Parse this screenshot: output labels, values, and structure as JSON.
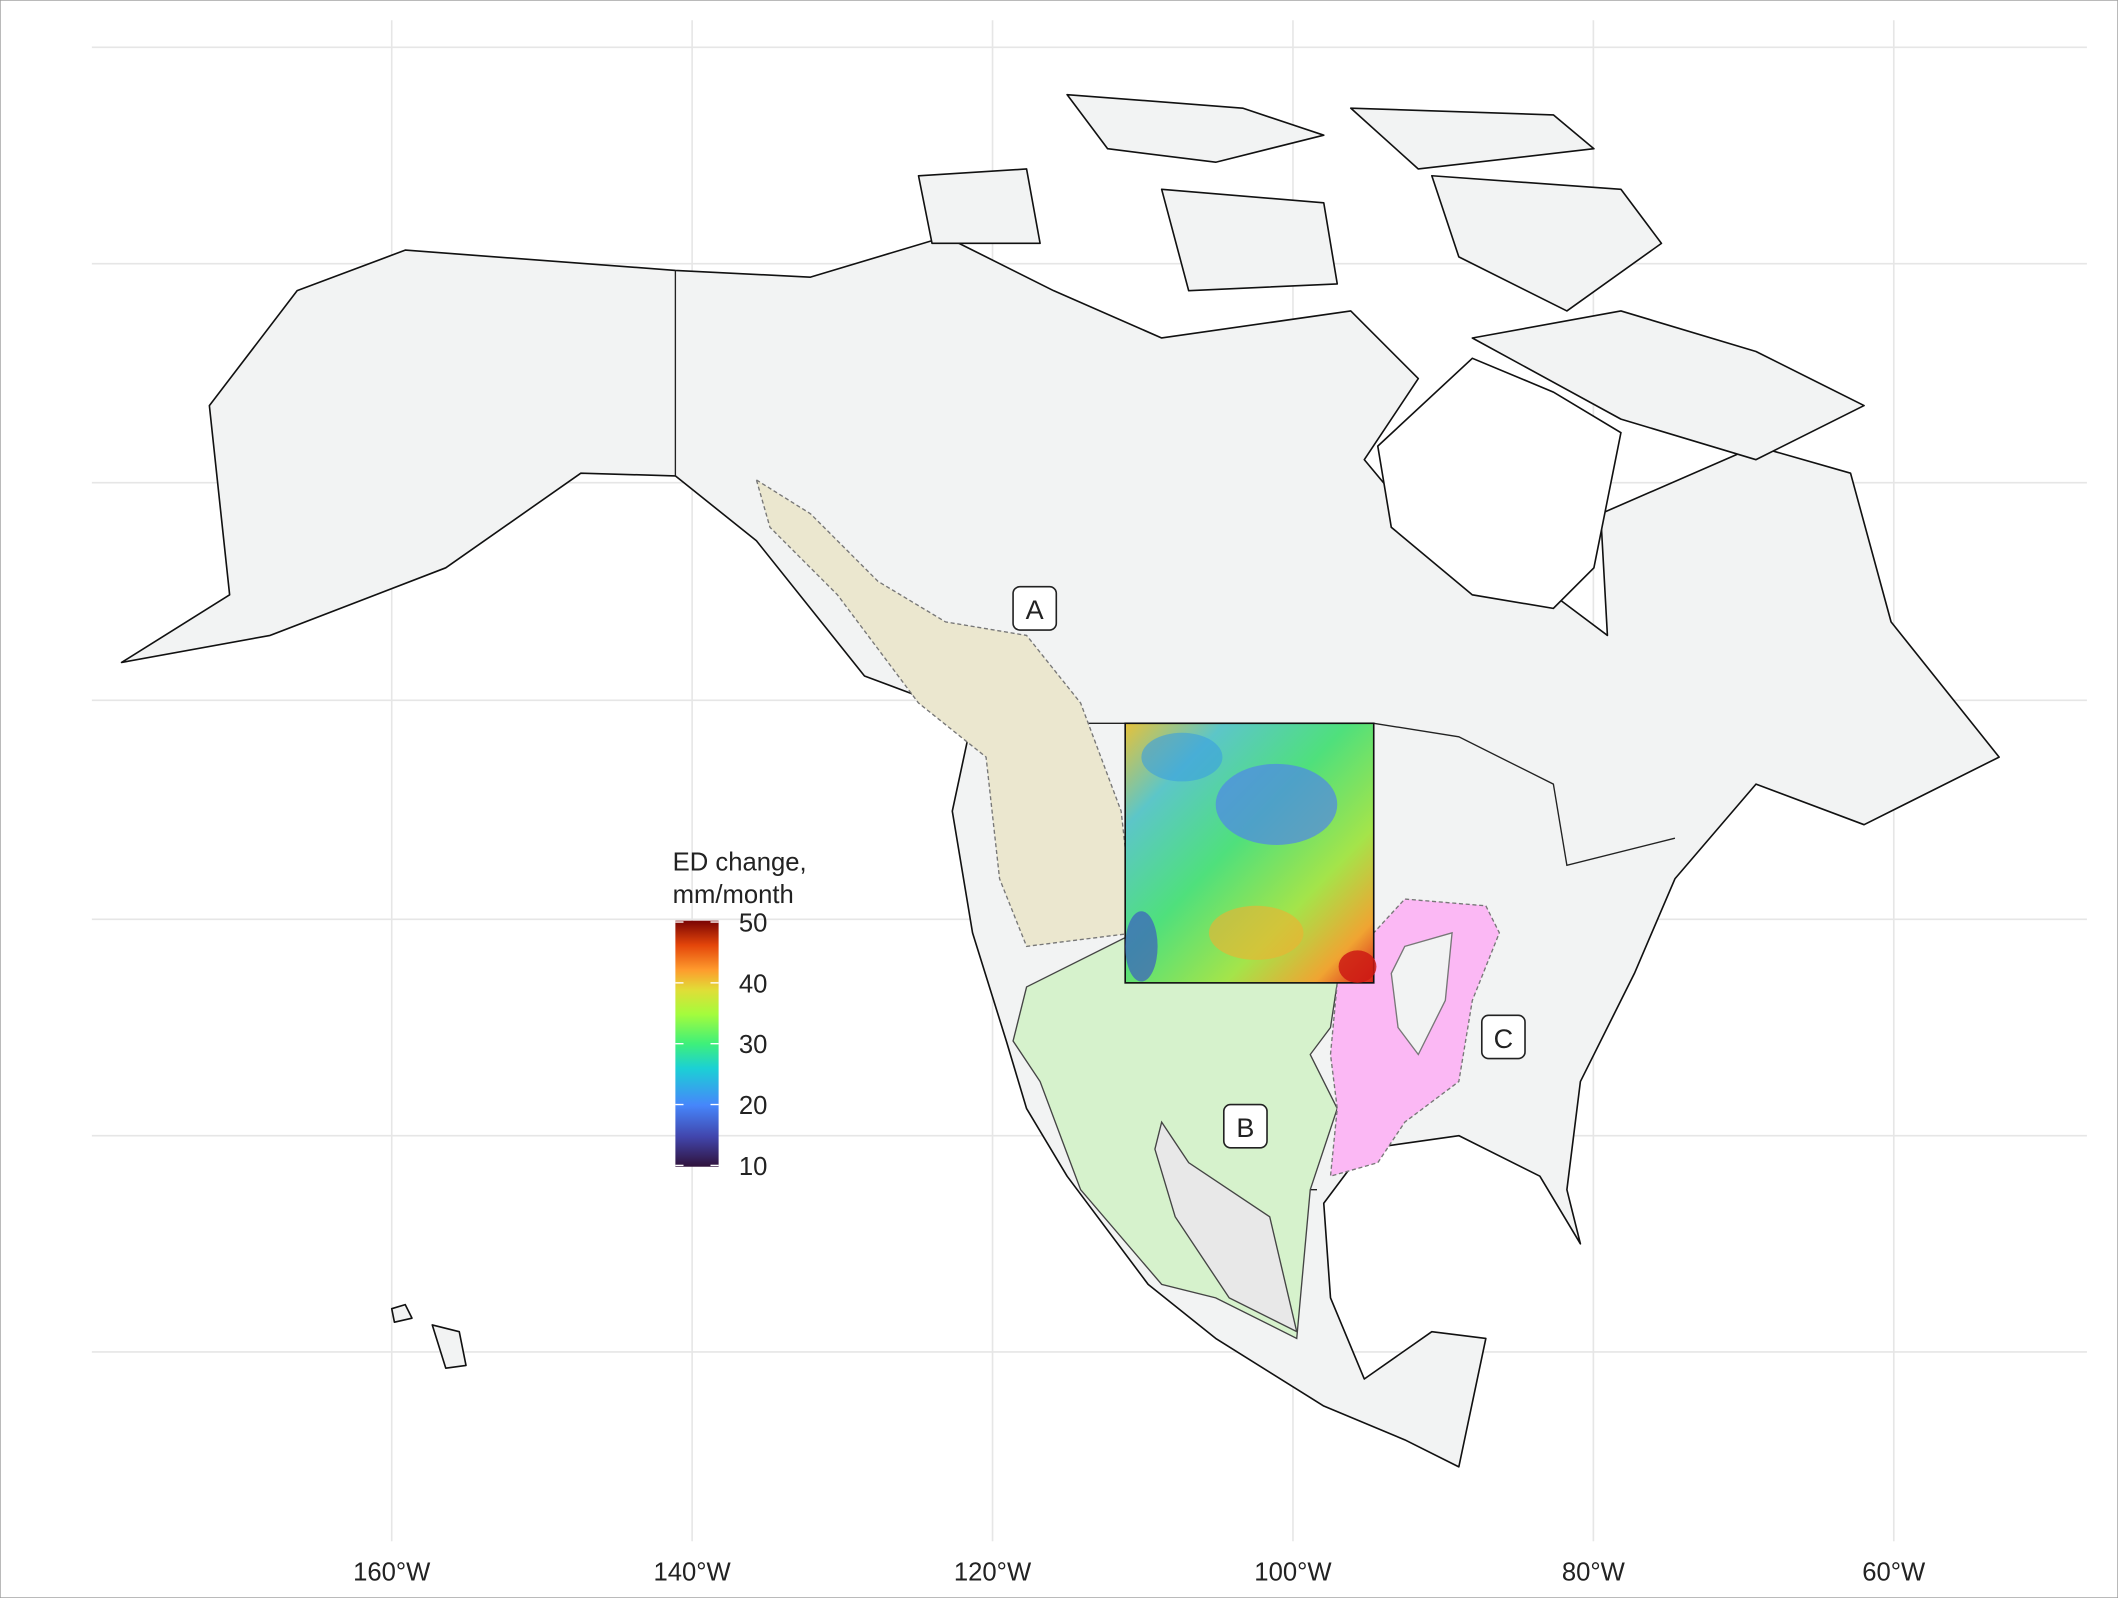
{
  "map": {
    "xticks": [
      {
        "value": -160,
        "label": "160°W"
      },
      {
        "value": -140,
        "label": "140°W"
      },
      {
        "value": -120,
        "label": "120°W"
      },
      {
        "value": -100,
        "label": "100°W"
      },
      {
        "value": -80,
        "label": "80°W"
      },
      {
        "value": -60,
        "label": "60°W"
      }
    ],
    "legend": {
      "title": [
        "ED change,",
        "mm/month"
      ],
      "lim": [
        10,
        50
      ],
      "ticks": [
        10,
        20,
        30,
        40,
        50
      ]
    },
    "regions": [
      {
        "label": "A"
      },
      {
        "label": "B"
      },
      {
        "label": "C"
      }
    ]
  }
}
